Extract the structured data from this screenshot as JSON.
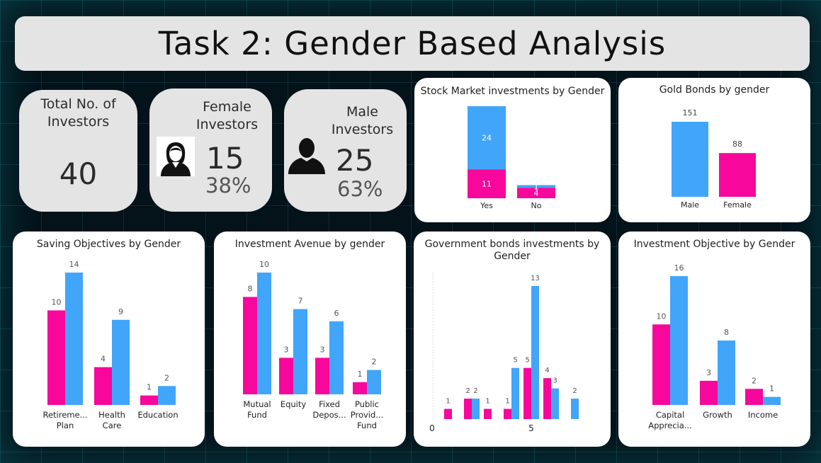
{
  "title": "Task 2: Gender Based Analysis",
  "colors": {
    "male": "#41a5fa",
    "female": "#f7079b"
  },
  "kpis": {
    "total": {
      "label_line1": "Total No. of",
      "label_line2": "Investors",
      "value": "40"
    },
    "female": {
      "label_line1": "Female",
      "label_line2": "Investors",
      "value": "15",
      "pct": "38%",
      "icon": "female-user-icon"
    },
    "male": {
      "label_line1": "Male",
      "label_line2": "Investors",
      "value": "25",
      "pct": "63%",
      "icon": "male-user-icon"
    }
  },
  "chart_data": [
    {
      "id": "stock",
      "type": "bar",
      "title": "Stock Market investments by Gender",
      "stacked": true,
      "categories": [
        "Yes",
        "No"
      ],
      "series": [
        {
          "name": "Female",
          "values": [
            11,
            4
          ]
        },
        {
          "name": "Male",
          "values": [
            24,
            1
          ]
        }
      ]
    },
    {
      "id": "gold",
      "type": "bar",
      "title": "Gold Bonds by gender",
      "categories": [
        "Male",
        "Female"
      ],
      "values": [
        151,
        88
      ]
    },
    {
      "id": "saving",
      "type": "bar",
      "title": "Saving Objectives by Gender",
      "categories": [
        [
          "Retireme...",
          "Plan"
        ],
        [
          "Health",
          "Care"
        ],
        [
          "Education"
        ]
      ],
      "series": [
        {
          "name": "Female",
          "values": [
            10,
            4,
            1
          ]
        },
        {
          "name": "Male",
          "values": [
            14,
            9,
            2
          ]
        }
      ]
    },
    {
      "id": "avenue",
      "type": "bar",
      "title": "Investment Avenue by gender",
      "categories": [
        [
          "Mutual",
          "Fund"
        ],
        [
          "Equity"
        ],
        [
          "Fixed",
          "Depos..."
        ],
        [
          "Public",
          "Provid...",
          "Fund"
        ]
      ],
      "series": [
        {
          "name": "Female",
          "values": [
            8,
            3,
            3,
            1
          ]
        },
        {
          "name": "Male",
          "values": [
            10,
            7,
            6,
            2
          ]
        }
      ]
    },
    {
      "id": "govt",
      "type": "bar",
      "title_line1": "Government bonds investments by",
      "title_line2": "Gender",
      "x_ticks": [
        "0",
        "5"
      ],
      "groups": [
        {
          "x": 1,
          "female": 1,
          "male": null
        },
        {
          "x": 2,
          "female": 2,
          "male": 2
        },
        {
          "x": 3,
          "female": 1,
          "male": null
        },
        {
          "x": 4,
          "female": 1,
          "male": 5
        },
        {
          "x": 5,
          "female": 5,
          "male": 13
        },
        {
          "x": 6,
          "female": 4,
          "male": 3
        },
        {
          "x": 7,
          "female": null,
          "male": 2
        }
      ],
      "ylim": [
        0,
        13
      ]
    },
    {
      "id": "objective",
      "type": "bar",
      "title": "Investment Objective by Gender",
      "categories": [
        [
          "Capital",
          "Apprecia..."
        ],
        [
          "Growth"
        ],
        [
          "Income"
        ]
      ],
      "series": [
        {
          "name": "Female",
          "values": [
            10,
            3,
            2
          ]
        },
        {
          "name": "Male",
          "values": [
            16,
            8,
            1
          ]
        }
      ]
    }
  ]
}
